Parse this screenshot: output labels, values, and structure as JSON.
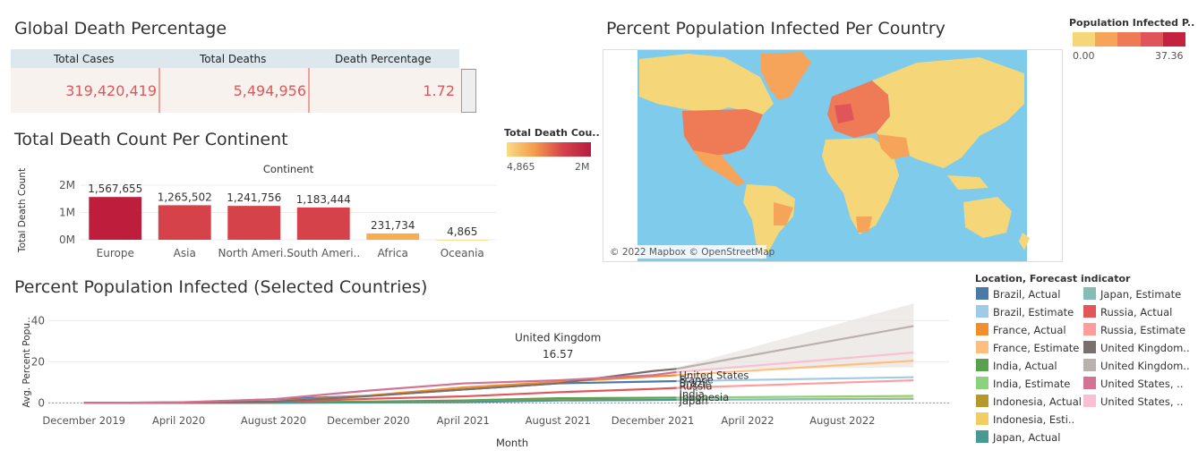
{
  "kpi": {
    "title": "Global Death Percentage",
    "headers": [
      "Total Cases",
      "Total Deaths",
      "Death Percentage"
    ],
    "values": [
      "319,420,419",
      "5,494,956",
      "1.72"
    ]
  },
  "map": {
    "title": "Percent Population Infected Per Country",
    "attribution": "© 2022 Mapbox © OpenStreetMap",
    "legend_title": "Population Infected P..",
    "legend_min": "0.00",
    "legend_max": "37.36",
    "colors": [
      "#f5d77a",
      "#f6a45a",
      "#ee7b55",
      "#e0555a",
      "#c4233f"
    ],
    "ocean_color": "#7ecbec"
  },
  "bar_legend": {
    "title": "Total Death Cou..",
    "min": "4,865",
    "max": "2M"
  },
  "chart_data": [
    {
      "type": "bar",
      "title": "Total Death Count Per Continent",
      "xlabel": "Continent",
      "ylabel": "Total Death Count",
      "categories": [
        "Europe",
        "Asia",
        "North Ameri..",
        "South Ameri..",
        "Africa",
        "Oceania"
      ],
      "values": [
        1567655,
        1265502,
        1241756,
        1183444,
        231734,
        4865
      ],
      "value_labels": [
        "1,567,655",
        "1,265,502",
        "1,241,756",
        "1,183,444",
        "231,734",
        "4,865"
      ],
      "colors": [
        "#be1e3c",
        "#d5424a",
        "#d5424a",
        "#d5424a",
        "#f7ad50",
        "#f9dc84"
      ],
      "yticks": [
        {
          "v": 2000000,
          "label": "2M"
        },
        {
          "v": 1000000,
          "label": "1M"
        },
        {
          "v": 0,
          "label": "0M"
        }
      ],
      "ylim": [
        0,
        2000000
      ]
    },
    {
      "type": "line",
      "title": "Percent Population Infected (Selected Countries)",
      "xlabel": "Month",
      "ylabel": "Avg. Percent Popu..",
      "x_ticks": [
        {
          "m": 0,
          "label": "December 2019"
        },
        {
          "m": 4,
          "label": "April 2020"
        },
        {
          "m": 8,
          "label": "August 2020"
        },
        {
          "m": 12,
          "label": "December 2020"
        },
        {
          "m": 16,
          "label": "April 2021"
        },
        {
          "m": 20,
          "label": "August 2021"
        },
        {
          "m": 24,
          "label": "December 2021"
        },
        {
          "m": 28,
          "label": "April 2022"
        },
        {
          "m": 32,
          "label": "August 2022"
        }
      ],
      "yticks": [
        0,
        20,
        40
      ],
      "ylim": [
        -2,
        48
      ],
      "xlim": [
        -1.5,
        36.5
      ],
      "legend_title": "Location, Forecast indicator",
      "legend": [
        "Brazil, Actual",
        "Brazil, Estimate",
        "France, Actual",
        "France, Estimate",
        "India, Actual",
        "India, Estimate",
        "Indonesia, Actual",
        "Indonesia, Esti..",
        "Japan, Actual",
        "Japan, Estimate",
        "Russia, Actual",
        "Russia, Estimate",
        "United Kingdom..",
        "United Kingdom..",
        "United States, ..",
        "United States, .."
      ],
      "series": [
        {
          "name": "Brazil, Actual",
          "color": "#4e79a7",
          "x": [
            0,
            4,
            8,
            12,
            16,
            20,
            24,
            25
          ],
          "y": [
            0,
            0.1,
            1.8,
            3.5,
            6.5,
            9.5,
            10.4,
            10.6
          ]
        },
        {
          "name": "Brazil, Estimate",
          "color": "#a0cbe8",
          "x": [
            25,
            35
          ],
          "y": [
            10.6,
            12.5
          ]
        },
        {
          "name": "France, Actual",
          "color": "#f28e2b",
          "x": [
            0,
            4,
            8,
            12,
            16,
            20,
            24,
            25
          ],
          "y": [
            0,
            0.2,
            0.8,
            3.6,
            7.5,
            10.2,
            12.8,
            13.5
          ]
        },
        {
          "name": "France, Estimate",
          "color": "#ffbe7d",
          "x": [
            25,
            35
          ],
          "y": [
            13.5,
            20.5
          ]
        },
        {
          "name": "India, Actual",
          "color": "#59a14f",
          "x": [
            0,
            4,
            8,
            12,
            16,
            20,
            24,
            25
          ],
          "y": [
            0,
            0,
            0.3,
            0.7,
            1.2,
            2.3,
            2.5,
            2.6
          ]
        },
        {
          "name": "India, Estimate",
          "color": "#8cd17d",
          "x": [
            25,
            35
          ],
          "y": [
            2.6,
            3.4
          ]
        },
        {
          "name": "Indonesia, Actual",
          "color": "#b6992d",
          "x": [
            0,
            4,
            8,
            12,
            16,
            20,
            24,
            25
          ],
          "y": [
            0,
            0,
            0.1,
            0.3,
            0.6,
            1.4,
            1.5,
            1.54
          ]
        },
        {
          "name": "Indonesia, Esti..",
          "color": "#f1ce63",
          "x": [
            25,
            35
          ],
          "y": [
            1.54,
            2.2
          ]
        },
        {
          "name": "Japan, Actual",
          "color": "#499894",
          "x": [
            0,
            4,
            8,
            12,
            16,
            20,
            24,
            25
          ],
          "y": [
            0,
            0,
            0.05,
            0.2,
            0.4,
            1.2,
            1.4,
            1.5
          ]
        },
        {
          "name": "Japan, Estimate",
          "color": "#86bcb6",
          "x": [
            25,
            35
          ],
          "y": [
            1.5,
            2.0
          ]
        },
        {
          "name": "Russia, Actual",
          "color": "#e15759",
          "x": [
            0,
            4,
            8,
            12,
            16,
            20,
            24,
            25
          ],
          "y": [
            0,
            0.1,
            0.5,
            2.0,
            3.2,
            5.2,
            6.8,
            7.3
          ]
        },
        {
          "name": "Russia, Estimate",
          "color": "#ff9d9a",
          "x": [
            25,
            35
          ],
          "y": [
            7.3,
            11.0
          ]
        },
        {
          "name": "United Kingdom..",
          "color": "#79706e",
          "x": [
            0,
            4,
            8,
            12,
            16,
            20,
            24,
            25
          ],
          "y": [
            0,
            0.3,
            0.6,
            3.3,
            6.5,
            9.5,
            15.5,
            16.57
          ]
        },
        {
          "name": "United Kingdom..",
          "color": "#bab0ac",
          "x": [
            25,
            35
          ],
          "y": [
            16.57,
            37.36
          ]
        },
        {
          "name": "United States, ..",
          "color": "#d37295",
          "x": [
            0,
            4,
            8,
            12,
            16,
            20,
            24,
            25
          ],
          "y": [
            0,
            0.3,
            1.8,
            6.0,
            9.5,
            11.0,
            13.5,
            15.0
          ]
        },
        {
          "name": "United States, ..",
          "color": "#fabfd2",
          "x": [
            25,
            35
          ],
          "y": [
            15.0,
            24.5
          ]
        }
      ],
      "annotations": [
        {
          "label": "United Kingdom",
          "x": 20,
          "y": 30
        },
        {
          "label": "16.57",
          "x": 20,
          "y": 22
        }
      ],
      "end_labels": [
        "United States",
        "France",
        "Brazil",
        "Russia",
        "India",
        "Indonesia",
        "Japan"
      ]
    }
  ]
}
